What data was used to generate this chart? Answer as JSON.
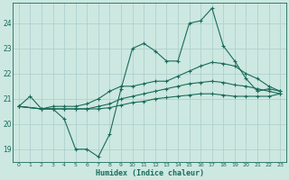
{
  "xlabel": "Humidex (Indice chaleur)",
  "bg_color": "#cce8e0",
  "grid_color": "#aacccc",
  "line_color": "#1a6b5a",
  "xlim": [
    -0.5,
    23.5
  ],
  "ylim": [
    18.5,
    24.8
  ],
  "yticks": [
    19,
    20,
    21,
    22,
    23,
    24
  ],
  "xticks": [
    0,
    1,
    2,
    3,
    4,
    5,
    6,
    7,
    8,
    9,
    10,
    11,
    12,
    13,
    14,
    15,
    16,
    17,
    18,
    19,
    20,
    21,
    22,
    23
  ],
  "lines": [
    {
      "x": [
        0,
        1,
        2,
        3,
        4,
        5,
        6,
        7,
        8,
        9,
        10,
        11,
        12,
        13,
        14,
        15,
        16,
        17,
        18,
        19,
        20,
        21,
        22,
        23
      ],
      "y": [
        20.7,
        21.1,
        20.6,
        20.6,
        20.2,
        19.0,
        19.0,
        18.7,
        19.6,
        21.4,
        23.0,
        23.2,
        22.9,
        22.5,
        22.5,
        24.0,
        24.1,
        24.6,
        23.1,
        22.5,
        21.8,
        21.3,
        21.4,
        21.3
      ]
    },
    {
      "x": [
        0,
        2,
        3,
        4,
        5,
        6,
        7,
        8,
        9,
        10,
        11,
        12,
        13,
        14,
        15,
        16,
        17,
        18,
        19,
        20,
        21,
        22,
        23
      ],
      "y": [
        20.7,
        20.6,
        20.7,
        20.7,
        20.7,
        20.8,
        21.0,
        21.3,
        21.5,
        21.5,
        21.6,
        21.7,
        21.7,
        21.9,
        22.1,
        22.3,
        22.45,
        22.4,
        22.3,
        22.0,
        21.8,
        21.5,
        21.3
      ]
    },
    {
      "x": [
        0,
        2,
        3,
        4,
        5,
        6,
        7,
        8,
        9,
        10,
        11,
        12,
        13,
        14,
        15,
        16,
        17,
        18,
        19,
        20,
        21,
        22,
        23
      ],
      "y": [
        20.7,
        20.6,
        20.6,
        20.6,
        20.6,
        20.6,
        20.7,
        20.8,
        21.0,
        21.1,
        21.2,
        21.3,
        21.4,
        21.5,
        21.6,
        21.65,
        21.7,
        21.65,
        21.55,
        21.5,
        21.4,
        21.3,
        21.2
      ]
    },
    {
      "x": [
        0,
        2,
        3,
        4,
        5,
        6,
        7,
        8,
        9,
        10,
        11,
        12,
        13,
        14,
        15,
        16,
        17,
        18,
        19,
        20,
        21,
        22,
        23
      ],
      "y": [
        20.7,
        20.6,
        20.6,
        20.6,
        20.6,
        20.6,
        20.6,
        20.65,
        20.75,
        20.85,
        20.9,
        21.0,
        21.05,
        21.1,
        21.15,
        21.2,
        21.2,
        21.15,
        21.1,
        21.1,
        21.1,
        21.1,
        21.2
      ]
    }
  ]
}
